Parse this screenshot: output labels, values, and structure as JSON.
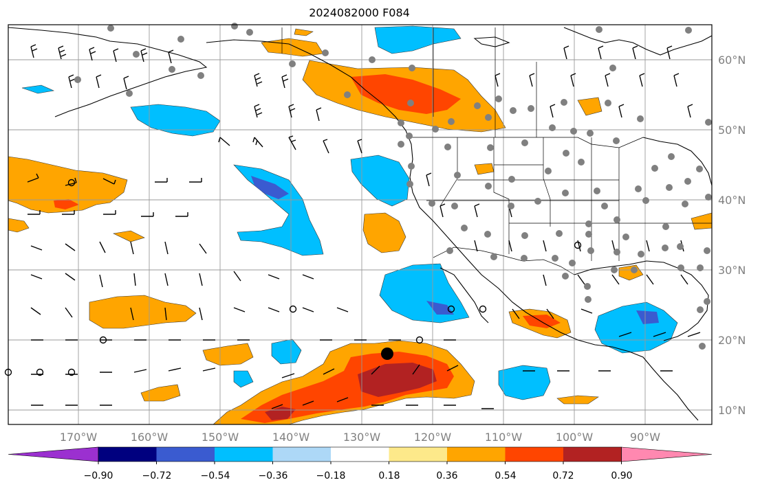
{
  "title": "2024082000 F084",
  "latitude_labels": [
    "60°N",
    "50°N",
    "40°N",
    "30°N",
    "20°N",
    "10°N"
  ],
  "longitude_labels": [
    "170°W",
    "160°W",
    "150°W",
    "140°W",
    "130°W",
    "120°W",
    "110°W",
    "100°W",
    "90°W"
  ],
  "colorbar": {
    "ticks": [
      "−0.90",
      "−0.72",
      "−0.54",
      "−0.36",
      "−0.18",
      "0.18",
      "0.36",
      "0.54",
      "0.72",
      "0.90"
    ],
    "colors": [
      "#9b30d0",
      "#00007f",
      "#3a5bd0",
      "#00bfff",
      "#add8f7",
      "#ffffff",
      "#fde98a",
      "#ffa500",
      "#ff4500",
      "#b22222",
      "#ff88b0"
    ]
  },
  "legend_colors": {
    "negative_strong": "#3a5bd0",
    "negative": "#00bfff",
    "negative_weak": "#add8f7",
    "positive_weak": "#fde98a",
    "positive": "#ffa500",
    "positive_strong": "#ff4500",
    "positive_max": "#b22222",
    "station_dot": "#808080"
  }
}
